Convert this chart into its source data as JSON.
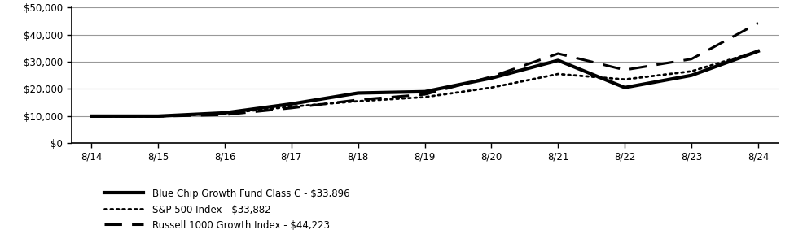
{
  "x_labels": [
    "8/14",
    "8/15",
    "8/16",
    "8/17",
    "8/18",
    "8/19",
    "8/20",
    "8/21",
    "8/22",
    "8/23",
    "8/24"
  ],
  "blue_chip": [
    10000,
    10000,
    11200,
    14500,
    18500,
    19000,
    24000,
    30500,
    20500,
    25000,
    33896
  ],
  "sp500": [
    9800,
    9900,
    11000,
    13500,
    15500,
    17000,
    20500,
    25500,
    23500,
    26500,
    33882
  ],
  "russell": [
    9900,
    9900,
    10500,
    13000,
    16000,
    18000,
    24500,
    33000,
    27000,
    31000,
    44223
  ],
  "legend_labels": [
    "Blue Chip Growth Fund Class C - $33,896",
    "S&P 500 Index - $33,882",
    "Russell 1000 Growth Index - $44,223"
  ],
  "ylim": [
    0,
    50000
  ],
  "yticks": [
    0,
    10000,
    20000,
    30000,
    40000,
    50000
  ],
  "line_color": "#000000",
  "background_color": "#ffffff",
  "grid_color": "#888888"
}
